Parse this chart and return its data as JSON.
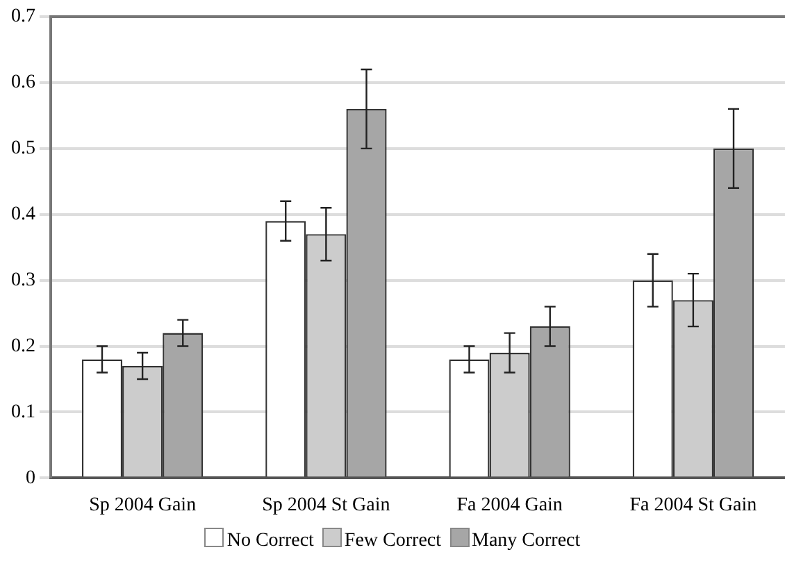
{
  "chart_data": {
    "type": "bar",
    "categories": [
      "Sp 2004 Gain",
      "Sp 2004 St Gain",
      "Fa 2004 Gain",
      "Fa 2004 St Gain"
    ],
    "series": [
      {
        "name": "No Correct",
        "color": "#ffffff",
        "values": [
          0.18,
          0.39,
          0.18,
          0.3
        ],
        "errors": [
          0.02,
          0.03,
          0.02,
          0.04
        ]
      },
      {
        "name": "Few Correct",
        "color": "#cccccc",
        "values": [
          0.17,
          0.37,
          0.19,
          0.27
        ],
        "errors": [
          0.02,
          0.04,
          0.03,
          0.04
        ]
      },
      {
        "name": "Many Correct",
        "color": "#a6a6a6",
        "values": [
          0.22,
          0.56,
          0.23,
          0.5
        ],
        "errors": [
          0.02,
          0.06,
          0.03,
          0.06
        ]
      }
    ],
    "ylim": [
      0,
      0.7
    ],
    "yticks": [
      0,
      0.1,
      0.2,
      0.3,
      0.4,
      0.5,
      0.6,
      0.7
    ],
    "grid": "y",
    "legend": "bottom"
  }
}
